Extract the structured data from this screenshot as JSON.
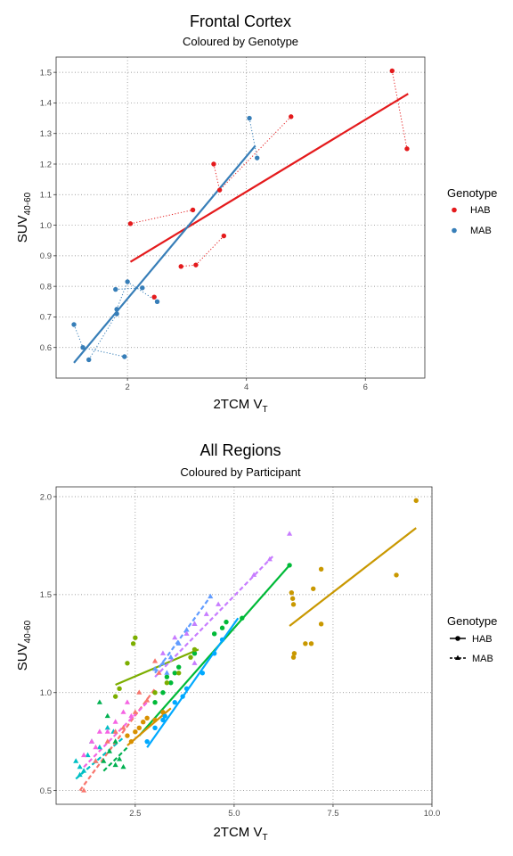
{
  "chart_data": [
    {
      "type": "scatter",
      "title": "Frontal Cortex",
      "subtitle": "Coloured by Genotype",
      "xlabel": "2TCM V",
      "xlabel_sub": "T",
      "ylabel": "SUV",
      "ylabel_sub": "40-60",
      "xlim": [
        0.8,
        7.0
      ],
      "ylim": [
        0.5,
        1.55
      ],
      "xticks": [
        2,
        4,
        6
      ],
      "xtick_labels": [
        "2",
        "4",
        "6"
      ],
      "yticks": [
        0.6,
        0.7,
        0.8,
        0.9,
        1.0,
        1.1,
        1.2,
        1.3,
        1.4,
        1.5
      ],
      "ytick_labels": [
        "0.6",
        "0.7",
        "0.8",
        "0.9",
        "1.0",
        "1.1",
        "1.2",
        "1.3",
        "1.4",
        "1.5"
      ],
      "grid": true,
      "legend": {
        "title": "Genotype",
        "position": "right"
      },
      "series": [
        {
          "name": "HAB",
          "color": "#e41a1c",
          "points": [
            [
              2.05,
              1.005
            ],
            [
              3.1,
              1.05
            ],
            [
              3.45,
              1.2
            ],
            [
              3.55,
              1.115
            ],
            [
              3.62,
              0.965
            ],
            [
              2.45,
              0.765
            ],
            [
              2.9,
              0.865
            ],
            [
              3.15,
              0.87
            ],
            [
              4.75,
              1.355
            ],
            [
              6.45,
              1.505
            ],
            [
              6.7,
              1.25
            ]
          ],
          "pairs": [
            [
              0,
              1
            ],
            [
              4,
              7
            ],
            [
              7,
              6
            ],
            [
              2,
              3
            ],
            [
              8,
              3
            ],
            [
              9,
              10
            ]
          ],
          "fit": [
            [
              2.05,
              0.88
            ],
            [
              6.72,
              1.43
            ]
          ]
        },
        {
          "name": "MAB",
          "color": "#377eb8",
          "points": [
            [
              1.1,
              0.675
            ],
            [
              1.25,
              0.6
            ],
            [
              1.35,
              0.56
            ],
            [
              1.82,
              0.725
            ],
            [
              1.8,
              0.79
            ],
            [
              1.82,
              0.71
            ],
            [
              2.0,
              0.815
            ],
            [
              1.95,
              0.57
            ],
            [
              2.25,
              0.795
            ],
            [
              2.5,
              0.75
            ],
            [
              4.05,
              1.35
            ],
            [
              4.18,
              1.22
            ]
          ],
          "pairs": [
            [
              0,
              1
            ],
            [
              1,
              7
            ],
            [
              2,
              5
            ],
            [
              4,
              8
            ],
            [
              3,
              6
            ],
            [
              6,
              9
            ],
            [
              10,
              11
            ]
          ],
          "fit": [
            [
              1.1,
              0.55
            ],
            [
              4.15,
              1.26
            ]
          ]
        }
      ]
    },
    {
      "type": "scatter",
      "title": "All Regions",
      "subtitle": "Coloured by Participant",
      "xlabel": "2TCM V",
      "xlabel_sub": "T",
      "ylabel": "SUV",
      "ylabel_sub": "40-60",
      "xlim": [
        0.5,
        10.0
      ],
      "ylim": [
        0.43,
        2.05
      ],
      "xticks": [
        2.5,
        5.0,
        7.5,
        10.0
      ],
      "xtick_labels": [
        "2.5",
        "5.0",
        "7.5",
        "10.0"
      ],
      "yticks": [
        0.5,
        1.0,
        1.5,
        2.0
      ],
      "ytick_labels": [
        "0.5",
        "1.0",
        "1.5",
        "2.0"
      ],
      "grid": true,
      "legend": {
        "title": "Genotype",
        "position": "right",
        "entries": [
          "HAB",
          "MAB"
        ]
      },
      "participants": [
        {
          "genotype": "HAB",
          "color": "#c99800",
          "fit": [
            [
              6.4,
              1.34
            ],
            [
              9.6,
              1.84
            ]
          ],
          "points": [
            [
              6.45,
              1.51
            ],
            [
              6.48,
              1.48
            ],
            [
              6.5,
              1.45
            ],
            [
              6.52,
              1.2
            ],
            [
              6.5,
              1.18
            ],
            [
              6.8,
              1.25
            ],
            [
              6.95,
              1.25
            ],
            [
              7.0,
              1.53
            ],
            [
              7.2,
              1.63
            ],
            [
              7.2,
              1.35
            ],
            [
              9.1,
              1.6
            ],
            [
              9.6,
              1.98
            ]
          ]
        },
        {
          "genotype": "HAB",
          "color": "#00ba38",
          "fit": [
            [
              2.6,
              0.78
            ],
            [
              6.4,
              1.65
            ]
          ],
          "points": [
            [
              3.2,
              1.0
            ],
            [
              3.4,
              1.05
            ],
            [
              3.5,
              1.1
            ],
            [
              3.6,
              1.13
            ],
            [
              4.0,
              1.2
            ],
            [
              4.5,
              1.3
            ],
            [
              4.7,
              1.33
            ],
            [
              4.8,
              1.36
            ],
            [
              5.2,
              1.38
            ],
            [
              6.4,
              1.65
            ],
            [
              3.3,
              1.08
            ],
            [
              3.0,
              0.95
            ]
          ]
        },
        {
          "genotype": "HAB",
          "color": "#00a9ff",
          "fit": [
            [
              2.8,
              0.72
            ],
            [
              5.1,
              1.38
            ]
          ],
          "points": [
            [
              2.8,
              0.75
            ],
            [
              3.0,
              0.82
            ],
            [
              3.2,
              0.86
            ],
            [
              3.25,
              0.88
            ],
            [
              3.5,
              0.95
            ],
            [
              3.8,
              1.02
            ],
            [
              4.2,
              1.1
            ],
            [
              4.5,
              1.2
            ],
            [
              4.7,
              1.27
            ],
            [
              3.7,
              0.98
            ]
          ]
        },
        {
          "genotype": "HAB",
          "color": "#d89000",
          "fit": [
            [
              2.3,
              0.73
            ],
            [
              3.4,
              0.92
            ]
          ],
          "points": [
            [
              2.4,
              0.75
            ],
            [
              2.5,
              0.8
            ],
            [
              2.6,
              0.82
            ],
            [
              2.7,
              0.85
            ],
            [
              2.8,
              0.87
            ],
            [
              3.0,
              0.86
            ],
            [
              3.2,
              0.9
            ],
            [
              2.3,
              0.78
            ]
          ]
        },
        {
          "genotype": "HAB",
          "color": "#7cae00",
          "fit": [
            [
              2.0,
              1.04
            ],
            [
              4.1,
              1.22
            ]
          ],
          "points": [
            [
              2.0,
              0.98
            ],
            [
              2.1,
              1.02
            ],
            [
              2.3,
              1.15
            ],
            [
              2.45,
              1.25
            ],
            [
              2.5,
              1.28
            ],
            [
              3.0,
              1.0
            ],
            [
              3.3,
              1.05
            ],
            [
              3.6,
              1.1
            ],
            [
              3.9,
              1.18
            ],
            [
              4.0,
              1.22
            ]
          ]
        },
        {
          "genotype": "MAB",
          "color": "#00bfc4",
          "fit": [
            [
              1.0,
              0.56
            ],
            [
              2.2,
              0.77
            ]
          ],
          "points": [
            [
              1.0,
              0.65
            ],
            [
              1.1,
              0.62
            ],
            [
              1.2,
              0.6
            ],
            [
              1.3,
              0.68
            ],
            [
              1.4,
              0.75
            ],
            [
              1.6,
              0.72
            ],
            [
              1.8,
              0.82
            ],
            [
              1.95,
              0.8
            ],
            [
              1.1,
              0.58
            ],
            [
              1.5,
              0.65
            ]
          ]
        },
        {
          "genotype": "MAB",
          "color": "#00b050",
          "fit": [
            [
              1.7,
              0.6
            ],
            [
              2.3,
              0.72
            ]
          ],
          "points": [
            [
              1.7,
              0.65
            ],
            [
              1.85,
              0.7
            ],
            [
              2.0,
              0.63
            ],
            [
              2.1,
              0.66
            ],
            [
              2.2,
              0.62
            ],
            [
              1.6,
              0.95
            ],
            [
              1.8,
              0.88
            ],
            [
              2.0,
              0.75
            ]
          ]
        },
        {
          "genotype": "MAB",
          "color": "#f8766d",
          "fit": [
            [
              1.1,
              0.5
            ],
            [
              3.0,
              1.02
            ]
          ],
          "points": [
            [
              1.2,
              0.5
            ],
            [
              1.5,
              0.65
            ],
            [
              1.8,
              0.75
            ],
            [
              2.0,
              0.8
            ],
            [
              2.2,
              0.82
            ],
            [
              2.5,
              0.9
            ],
            [
              2.8,
              0.96
            ],
            [
              3.1,
              1.1
            ],
            [
              2.6,
              1.0
            ],
            [
              3.0,
              1.16
            ]
          ]
        },
        {
          "genotype": "MAB",
          "color": "#f564e3",
          "fit": [
            [
              1.2,
              0.62
            ],
            [
              2.8,
              0.95
            ]
          ],
          "points": [
            [
              1.2,
              0.68
            ],
            [
              1.4,
              0.75
            ],
            [
              1.6,
              0.8
            ],
            [
              1.8,
              0.8
            ],
            [
              2.0,
              0.85
            ],
            [
              2.2,
              0.9
            ],
            [
              2.4,
              0.88
            ],
            [
              1.5,
              0.72
            ],
            [
              2.3,
              0.95
            ]
          ]
        },
        {
          "genotype": "MAB",
          "color": "#619cff",
          "fit": [
            [
              3.0,
              1.1
            ],
            [
              4.4,
              1.49
            ]
          ],
          "points": [
            [
              3.0,
              1.12
            ],
            [
              3.2,
              1.15
            ],
            [
              3.4,
              1.18
            ],
            [
              3.6,
              1.25
            ],
            [
              3.8,
              1.32
            ],
            [
              4.0,
              1.35
            ],
            [
              4.4,
              1.49
            ],
            [
              3.3,
              1.1
            ]
          ]
        },
        {
          "genotype": "MAB",
          "color": "#c77cff",
          "fit": [
            [
              3.0,
              1.08
            ],
            [
              6.0,
              1.7
            ]
          ],
          "points": [
            [
              3.2,
              1.2
            ],
            [
              3.5,
              1.28
            ],
            [
              3.8,
              1.3
            ],
            [
              4.0,
              1.35
            ],
            [
              4.3,
              1.4
            ],
            [
              4.6,
              1.45
            ],
            [
              5.5,
              1.6
            ],
            [
              5.9,
              1.68
            ],
            [
              6.4,
              1.81
            ],
            [
              4.0,
              1.15
            ]
          ]
        }
      ]
    }
  ]
}
